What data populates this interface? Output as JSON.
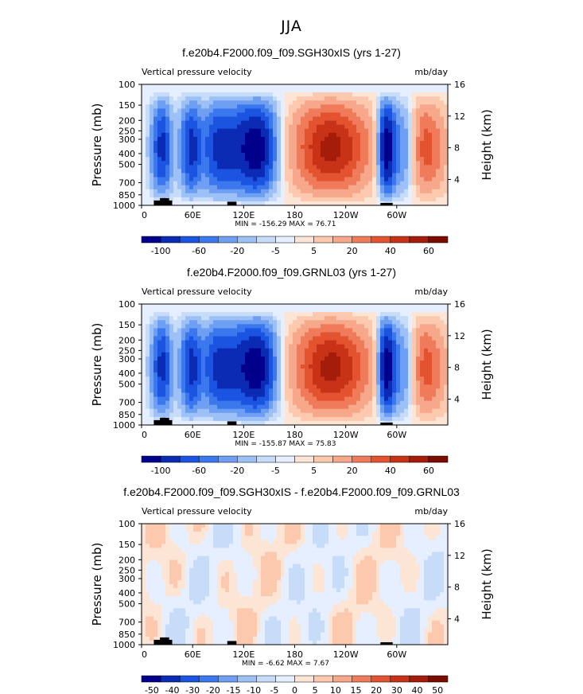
{
  "page_title": "JJA",
  "chart_data": [
    {
      "type": "heatmap",
      "title": "f.e20b4.F2000.f09_f09.SGH30xIS (yrs 1-27)",
      "subtitle_left": "Vertical pressure velocity",
      "units": "mb/day",
      "ylabel": "Pressure (mb)",
      "ylabel_right": "Height (km)",
      "x_ticks": [
        "0",
        "60E",
        "120E",
        "180",
        "120W",
        "60W"
      ],
      "y_ticks": [
        "100",
        "150",
        "200",
        "250",
        "300",
        "400",
        "500",
        "700",
        "850",
        "1000"
      ],
      "y_right_ticks": [
        "16",
        "12",
        "8",
        "4"
      ],
      "stats": "MIN = -156.29   MAX =  76.71",
      "colorbar_labels": [
        "-100",
        "-60",
        "-20",
        "-5",
        "5",
        "20",
        "40",
        "60"
      ],
      "colorbar_colors": [
        "#00008c",
        "#0b2bb5",
        "#1a54e0",
        "#3b78ee",
        "#6e9ff2",
        "#9dc1f6",
        "#c6dcf9",
        "#e5efff",
        "#fde5d6",
        "#fcc8ae",
        "#f7a78a",
        "#f07b5a",
        "#e4532f",
        "#c83217",
        "#a61c0a",
        "#7a0c00"
      ]
    },
    {
      "type": "heatmap",
      "title": "f.e20b4.F2000.f09_f09.GRNL03 (yrs 1-27)",
      "subtitle_left": "Vertical pressure velocity",
      "units": "mb/day",
      "ylabel": "Pressure (mb)",
      "ylabel_right": "Height (km)",
      "x_ticks": [
        "0",
        "60E",
        "120E",
        "180",
        "120W",
        "60W"
      ],
      "y_ticks": [
        "100",
        "150",
        "200",
        "250",
        "300",
        "400",
        "500",
        "700",
        "850",
        "1000"
      ],
      "y_right_ticks": [
        "16",
        "12",
        "8",
        "4"
      ],
      "stats": "MIN = -155.87   MAX =  75.83",
      "colorbar_labels": [
        "-100",
        "-60",
        "-20",
        "-5",
        "5",
        "20",
        "40",
        "60"
      ],
      "colorbar_colors": [
        "#00008c",
        "#0b2bb5",
        "#1a54e0",
        "#3b78ee",
        "#6e9ff2",
        "#9dc1f6",
        "#c6dcf9",
        "#e5efff",
        "#fde5d6",
        "#fcc8ae",
        "#f7a78a",
        "#f07b5a",
        "#e4532f",
        "#c83217",
        "#a61c0a",
        "#7a0c00"
      ]
    },
    {
      "type": "heatmap",
      "title": "f.e20b4.F2000.f09_f09.SGH30xIS - f.e20b4.F2000.f09_f09.GRNL03",
      "subtitle_left": "Vertical pressure velocity",
      "units": "mb/day",
      "ylabel": "Pressure (mb)",
      "ylabel_right": "Height (km)",
      "x_ticks": [
        "0",
        "60E",
        "120E",
        "180",
        "120W",
        "60W"
      ],
      "y_ticks": [
        "100",
        "150",
        "200",
        "250",
        "300",
        "400",
        "500",
        "700",
        "850",
        "1000"
      ],
      "y_right_ticks": [
        "16",
        "12",
        "8",
        "4"
      ],
      "stats": "MIN =  -6.62   MAX =   7.67",
      "colorbar_labels": [
        "-50",
        "-40",
        "-30",
        "-20",
        "-15",
        "-10",
        "-5",
        "0",
        "5",
        "10",
        "15",
        "20",
        "30",
        "40",
        "50"
      ],
      "colorbar_colors": [
        "#00008c",
        "#0b2bb5",
        "#1a54e0",
        "#3b78ee",
        "#6e9ff2",
        "#9dc1f6",
        "#c6dcf9",
        "#e5efff",
        "#fde5d6",
        "#fcc8ae",
        "#f7a78a",
        "#f07b5a",
        "#e4532f",
        "#c83217",
        "#a61c0a",
        "#7a0c00"
      ]
    }
  ]
}
